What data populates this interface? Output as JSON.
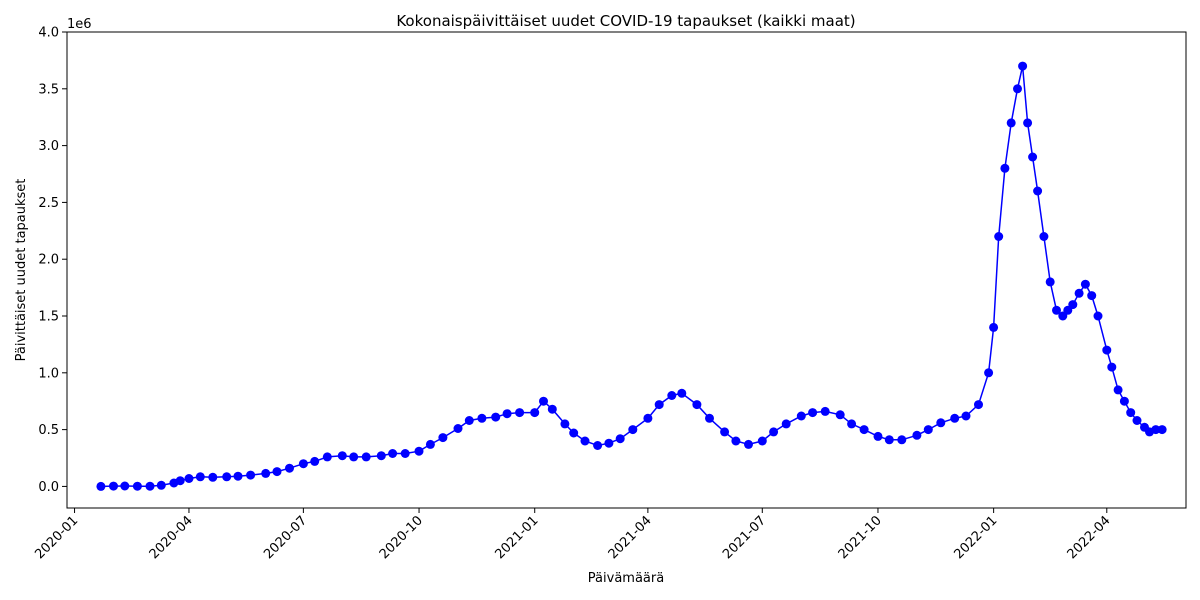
{
  "chart_data": {
    "type": "line",
    "title": "Kokonaispäivittäiset uudet COVID-19 tapaukset (kaikki maat)",
    "xlabel": "Päivämäärä",
    "ylabel": "Päivittäiset uudet tapaukset",
    "y_offset_text": "1e6",
    "y_unit_multiplier": 1000000,
    "ylim": [
      -0.19,
      4.0
    ],
    "xlim": [
      "2019-12-26",
      "2022-06-03"
    ],
    "yticks": [
      0.0,
      0.5,
      1.0,
      1.5,
      2.0,
      2.5,
      3.0,
      3.5,
      4.0
    ],
    "ytick_labels": [
      "0.0",
      "0.5",
      "1.0",
      "1.5",
      "2.0",
      "2.5",
      "3.0",
      "3.5",
      "4.0"
    ],
    "xticks": [
      "2020-01-01",
      "2020-04-01",
      "2020-07-01",
      "2020-10-01",
      "2021-01-01",
      "2021-04-01",
      "2021-07-01",
      "2021-10-01",
      "2022-01-01",
      "2022-04-01"
    ],
    "xtick_labels": [
      "2020-01",
      "2020-04",
      "2020-07",
      "2020-10",
      "2021-01",
      "2021-04",
      "2021-07",
      "2021-10",
      "2022-01",
      "2022-04"
    ],
    "grid": false,
    "legend": "none",
    "series": [
      {
        "color": "#0000ff",
        "marker": "circle",
        "points": [
          [
            "2020-01-22",
            0.0
          ],
          [
            "2020-02-01",
            0.003
          ],
          [
            "2020-02-10",
            0.004
          ],
          [
            "2020-02-20",
            0.002
          ],
          [
            "2020-03-01",
            0.002
          ],
          [
            "2020-03-10",
            0.01
          ],
          [
            "2020-03-20",
            0.03
          ],
          [
            "2020-03-25",
            0.05
          ],
          [
            "2020-04-01",
            0.07
          ],
          [
            "2020-04-10",
            0.085
          ],
          [
            "2020-04-20",
            0.08
          ],
          [
            "2020-05-01",
            0.085
          ],
          [
            "2020-05-10",
            0.09
          ],
          [
            "2020-05-20",
            0.1
          ],
          [
            "2020-06-01",
            0.115
          ],
          [
            "2020-06-10",
            0.13
          ],
          [
            "2020-06-20",
            0.16
          ],
          [
            "2020-07-01",
            0.2
          ],
          [
            "2020-07-10",
            0.22
          ],
          [
            "2020-07-20",
            0.26
          ],
          [
            "2020-08-01",
            0.27
          ],
          [
            "2020-08-10",
            0.26
          ],
          [
            "2020-08-20",
            0.26
          ],
          [
            "2020-09-01",
            0.27
          ],
          [
            "2020-09-10",
            0.29
          ],
          [
            "2020-09-20",
            0.29
          ],
          [
            "2020-10-01",
            0.31
          ],
          [
            "2020-10-10",
            0.37
          ],
          [
            "2020-10-20",
            0.43
          ],
          [
            "2020-11-01",
            0.51
          ],
          [
            "2020-11-10",
            0.58
          ],
          [
            "2020-11-20",
            0.6
          ],
          [
            "2020-12-01",
            0.61
          ],
          [
            "2020-12-10",
            0.64
          ],
          [
            "2020-12-20",
            0.65
          ],
          [
            "2021-01-01",
            0.65
          ],
          [
            "2021-01-08",
            0.75
          ],
          [
            "2021-01-15",
            0.68
          ],
          [
            "2021-01-25",
            0.55
          ],
          [
            "2021-02-01",
            0.47
          ],
          [
            "2021-02-10",
            0.4
          ],
          [
            "2021-02-20",
            0.36
          ],
          [
            "2021-03-01",
            0.38
          ],
          [
            "2021-03-10",
            0.42
          ],
          [
            "2021-03-20",
            0.5
          ],
          [
            "2021-04-01",
            0.6
          ],
          [
            "2021-04-10",
            0.72
          ],
          [
            "2021-04-20",
            0.8
          ],
          [
            "2021-04-28",
            0.82
          ],
          [
            "2021-05-10",
            0.72
          ],
          [
            "2021-05-20",
            0.6
          ],
          [
            "2021-06-01",
            0.48
          ],
          [
            "2021-06-10",
            0.4
          ],
          [
            "2021-06-20",
            0.37
          ],
          [
            "2021-07-01",
            0.4
          ],
          [
            "2021-07-10",
            0.48
          ],
          [
            "2021-07-20",
            0.55
          ],
          [
            "2021-08-01",
            0.62
          ],
          [
            "2021-08-10",
            0.65
          ],
          [
            "2021-08-20",
            0.66
          ],
          [
            "2021-09-01",
            0.63
          ],
          [
            "2021-09-10",
            0.55
          ],
          [
            "2021-09-20",
            0.5
          ],
          [
            "2021-10-01",
            0.44
          ],
          [
            "2021-10-10",
            0.41
          ],
          [
            "2021-10-20",
            0.41
          ],
          [
            "2021-11-01",
            0.45
          ],
          [
            "2021-11-10",
            0.5
          ],
          [
            "2021-11-20",
            0.56
          ],
          [
            "2021-12-01",
            0.6
          ],
          [
            "2021-12-10",
            0.62
          ],
          [
            "2021-12-20",
            0.72
          ],
          [
            "2021-12-28",
            1.0
          ],
          [
            "2022-01-01",
            1.4
          ],
          [
            "2022-01-05",
            2.2
          ],
          [
            "2022-01-10",
            2.8
          ],
          [
            "2022-01-15",
            3.2
          ],
          [
            "2022-01-20",
            3.5
          ],
          [
            "2022-01-24",
            3.7
          ],
          [
            "2022-01-28",
            3.2
          ],
          [
            "2022-02-01",
            2.9
          ],
          [
            "2022-02-05",
            2.6
          ],
          [
            "2022-02-10",
            2.2
          ],
          [
            "2022-02-15",
            1.8
          ],
          [
            "2022-02-20",
            1.55
          ],
          [
            "2022-02-25",
            1.5
          ],
          [
            "2022-03-01",
            1.55
          ],
          [
            "2022-03-05",
            1.6
          ],
          [
            "2022-03-10",
            1.7
          ],
          [
            "2022-03-15",
            1.78
          ],
          [
            "2022-03-20",
            1.68
          ],
          [
            "2022-03-25",
            1.5
          ],
          [
            "2022-04-01",
            1.2
          ],
          [
            "2022-04-05",
            1.05
          ],
          [
            "2022-04-10",
            0.85
          ],
          [
            "2022-04-15",
            0.75
          ],
          [
            "2022-04-20",
            0.65
          ],
          [
            "2022-04-25",
            0.58
          ],
          [
            "2022-05-01",
            0.52
          ],
          [
            "2022-05-05",
            0.48
          ],
          [
            "2022-05-10",
            0.5
          ],
          [
            "2022-05-15",
            0.5
          ]
        ]
      }
    ]
  }
}
